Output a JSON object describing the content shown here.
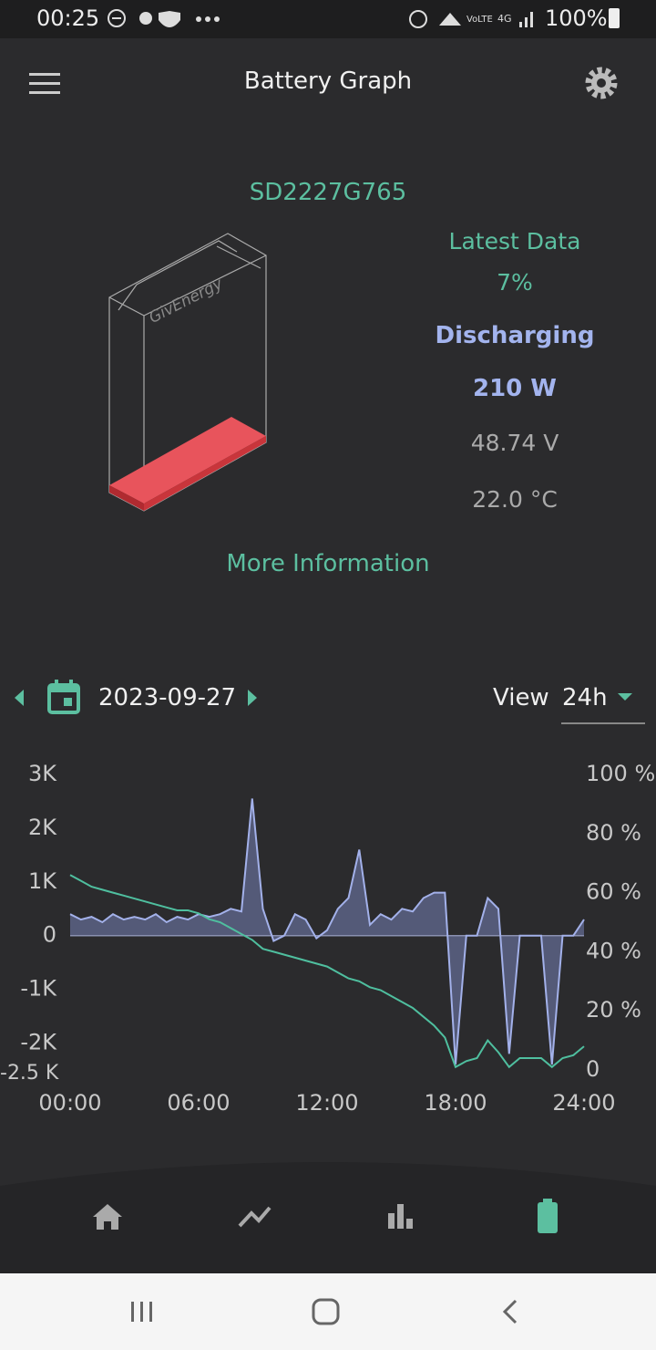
{
  "status_bar": {
    "time": "00:25",
    "battery": "100%"
  },
  "app_bar": {
    "title": "Battery Graph"
  },
  "battery": {
    "serial": "SD2227G765",
    "brand": "GivEnergy",
    "latest_label": "Latest Data",
    "level": "7%",
    "state": "Discharging",
    "power": "210 W",
    "voltage": "48.74 V",
    "temperature": "22.0 °C",
    "more": "More Information"
  },
  "controls": {
    "date": "2023-09-27",
    "view_label": "View",
    "view_value": "24h"
  },
  "chart_data": {
    "type": "line",
    "x": [
      0,
      0.5,
      1,
      1.5,
      2,
      2.5,
      3,
      3.5,
      4,
      4.5,
      5,
      5.5,
      6,
      6.5,
      7,
      7.5,
      8,
      8.5,
      9,
      9.5,
      10,
      10.5,
      11,
      11.5,
      12,
      12.5,
      13,
      13.5,
      14,
      14.5,
      15,
      15.5,
      16,
      16.5,
      17,
      17.5,
      18,
      18.5,
      19,
      19.5,
      20,
      20.5,
      21,
      21.5,
      22,
      22.5,
      23,
      23.5,
      24
    ],
    "xlim": [
      0,
      24
    ],
    "xticks": [
      {
        "value": 0,
        "label": "00:00"
      },
      {
        "value": 6,
        "label": "06:00"
      },
      {
        "value": 12,
        "label": "12:00"
      },
      {
        "value": 18,
        "label": "18:00"
      },
      {
        "value": 24,
        "label": "24:00"
      }
    ],
    "ylim": [
      -2500,
      3000
    ],
    "yticks": [
      {
        "value": 3000,
        "label": "3K"
      },
      {
        "value": 2000,
        "label": "2K"
      },
      {
        "value": 1000,
        "label": "1K"
      },
      0,
      {
        "value": -1000,
        "label": "-1K"
      },
      {
        "value": -2000,
        "label": "-2K"
      },
      {
        "value": -2500,
        "label": "-2.5 K"
      }
    ],
    "y2lim": [
      0,
      100
    ],
    "y2ticks": [
      {
        "value": 100,
        "label": "100 %"
      },
      {
        "value": 80,
        "label": "80 %"
      },
      {
        "value": 60,
        "label": "60 %"
      },
      {
        "value": 40,
        "label": "40 %"
      },
      {
        "value": 20,
        "label": "20 %"
      },
      0
    ],
    "series": [
      {
        "color": "#a3b1ea",
        "fill": "#545a78",
        "values": [
          400,
          300,
          350,
          250,
          400,
          300,
          350,
          300,
          400,
          250,
          350,
          300,
          400,
          350,
          400,
          500,
          450,
          2550,
          500,
          -100,
          0,
          400,
          300,
          -50,
          100,
          500,
          700,
          1600,
          200,
          400,
          300,
          500,
          450,
          700,
          800,
          800,
          -2400,
          0,
          0,
          700,
          500,
          -2200,
          0,
          0,
          0,
          -2400,
          0,
          0,
          300
        ]
      },
      {
        "color": "#4fbf9f",
        "axis": "y2",
        "values": [
          66,
          64,
          62,
          61,
          60,
          59,
          58,
          57,
          56,
          55,
          54,
          54,
          53,
          51,
          50,
          48,
          46,
          44,
          41,
          40,
          39,
          38,
          37,
          36,
          35,
          33,
          31,
          30,
          28,
          27,
          25,
          23,
          21,
          18,
          15,
          11,
          1,
          3,
          4,
          10,
          6,
          1,
          4,
          4,
          4,
          1,
          4,
          5,
          8
        ]
      }
    ]
  }
}
